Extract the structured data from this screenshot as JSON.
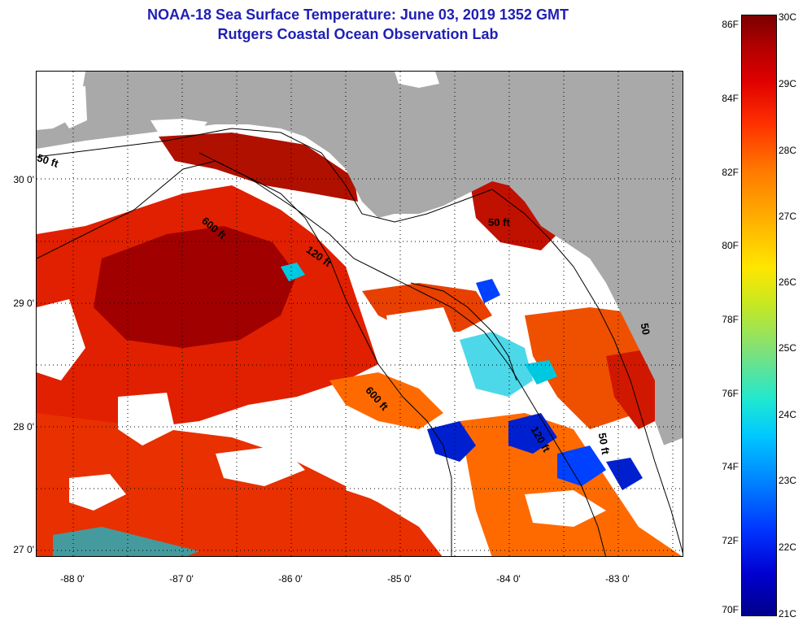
{
  "title": {
    "line1": "NOAA-18 Sea Surface Temperature:  June 03, 2019 1352 GMT",
    "line2": "Rutgers Coastal Ocean Observation Lab"
  },
  "axes": {
    "latitude_labels": [
      "30 0'",
      "29 0'",
      "28 0'",
      "27 0'"
    ],
    "longitude_labels": [
      "-88 0'",
      "-87 0'",
      "-86 0'",
      "-85 0'",
      "-84 0'",
      "-83 0'"
    ]
  },
  "contour_labels": [
    "50 ft",
    "600 ft",
    "120 ft",
    "50 ft",
    "600 ft",
    "120 ft",
    "50 ft",
    "50"
  ],
  "colorbar": {
    "fahrenheit_ticks": [
      "86F",
      "84F",
      "82F",
      "80F",
      "78F",
      "76F",
      "74F",
      "72F",
      "70F"
    ],
    "celsius_ticks": [
      "30C",
      "29C",
      "28C",
      "27C",
      "26C",
      "25C",
      "24C",
      "23C",
      "22C",
      "21C"
    ],
    "colors": [
      "#00008b",
      "#0033ff",
      "#00c8ff",
      "#7ee07a",
      "#ffe600",
      "#ff7a00",
      "#e00000",
      "#7a0000"
    ]
  },
  "map_colors": {
    "land": "#a9a9a9",
    "cloud": "#ffffff",
    "warm": "#e02000",
    "hot": "#a00000",
    "mid": "#ff6a00",
    "cool": "#00c8e0",
    "cold": "#0020d0"
  }
}
